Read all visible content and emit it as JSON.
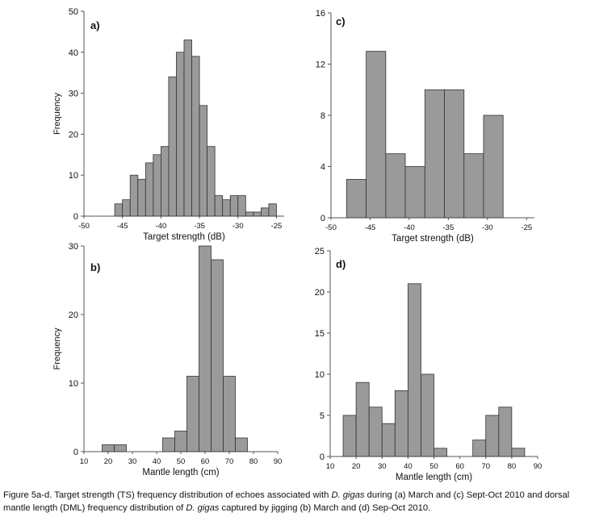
{
  "chart_data": [
    {
      "id": "a",
      "type": "bar",
      "panel_label": "a)",
      "xlabel": "Target strength (dB)",
      "ylabel": "Frequency",
      "xlim": [
        -50,
        -24
      ],
      "ylim": [
        0,
        50
      ],
      "xticks": [
        -50,
        -45,
        -40,
        -35,
        -30,
        -25
      ],
      "yticks": [
        0,
        10,
        20,
        30,
        40,
        50
      ],
      "bin_width": 1,
      "bin_starts": [
        -46,
        -45,
        -44,
        -43,
        -42,
        -41,
        -40,
        -39,
        -38,
        -37,
        -36,
        -35,
        -34,
        -33,
        -32,
        -31,
        -30,
        -29,
        -28,
        -27,
        -26
      ],
      "values": [
        3,
        4,
        10,
        9,
        13,
        15,
        17,
        34,
        40,
        43,
        39,
        27,
        17,
        5,
        4,
        5,
        5,
        1,
        1,
        2,
        3
      ]
    },
    {
      "id": "c",
      "type": "bar",
      "panel_label": "c)",
      "xlabel": "Target strength (dB)",
      "ylabel": "",
      "xlim": [
        -50,
        -24
      ],
      "ylim": [
        0,
        16
      ],
      "xticks": [
        -50,
        -45,
        -40,
        -35,
        -30,
        -25
      ],
      "yticks": [
        0,
        4,
        8,
        12,
        16
      ],
      "bin_width": 2.5,
      "bin_starts": [
        -48,
        -45.5,
        -43,
        -40.5,
        -38,
        -35.5,
        -33,
        -30.5,
        -28
      ],
      "values": [
        3,
        13,
        5,
        4,
        10,
        10,
        5,
        8,
        0
      ]
    },
    {
      "id": "b",
      "type": "bar",
      "panel_label": "b)",
      "xlabel": "Mantle length (cm)",
      "ylabel": "Frequency",
      "xlim": [
        10,
        90
      ],
      "ylim": [
        0,
        30
      ],
      "xticks": [
        10,
        20,
        30,
        40,
        50,
        60,
        70,
        80,
        90
      ],
      "yticks": [
        0,
        10,
        20,
        30
      ],
      "bin_width": 5,
      "bin_starts": [
        17.5,
        22.5,
        42.5,
        47.5,
        52.5,
        57.5,
        62.5,
        67.5,
        72.5,
        77.5
      ],
      "values": [
        1,
        1,
        2,
        3,
        11,
        30,
        28,
        11,
        2,
        0
      ]
    },
    {
      "id": "d",
      "type": "bar",
      "panel_label": "d)",
      "xlabel": "Mantle length (cm)",
      "ylabel": "",
      "xlim": [
        10,
        90
      ],
      "ylim": [
        0,
        25
      ],
      "xticks": [
        10,
        20,
        30,
        40,
        50,
        60,
        70,
        80,
        90
      ],
      "yticks": [
        0,
        5,
        10,
        15,
        20,
        25
      ],
      "bin_width": 5,
      "bin_starts": [
        15,
        20,
        25,
        30,
        35,
        40,
        45,
        50,
        65,
        70,
        75,
        80
      ],
      "values": [
        5,
        9,
        6,
        4,
        8,
        21,
        10,
        1,
        2,
        5,
        6,
        1
      ]
    }
  ],
  "caption": {
    "prefix": "Figure 5a-d. Target strength (TS) frequency distribution of echoes associated with ",
    "species_1": "D. gigas",
    "middle": " during (a) March and (c) Sept-Oct 2010 and dorsal mantle length (DML) frequency distribution of ",
    "species_2": "D. gigas",
    "suffix": " captured by jigging (b) March and (d) Sep-Oct 2010."
  },
  "colors": {
    "bar_fill": "#9a9a9a",
    "bar_stroke": "#333333",
    "axis": "#555555"
  }
}
